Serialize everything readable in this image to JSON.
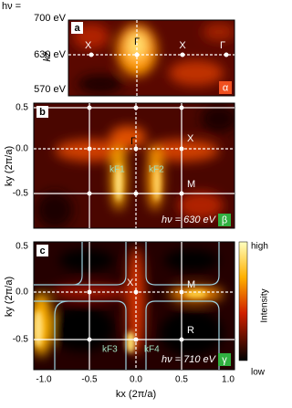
{
  "figure": {
    "hv_label": "hν =",
    "panel_a": {
      "letter": "a",
      "y_axis_label": "kz",
      "energy_labels": [
        "700 eV",
        "630 eV",
        "570 eV"
      ],
      "points": [
        "X",
        "Γ",
        "X",
        "Γ"
      ],
      "tag": "α"
    },
    "panel_b": {
      "letter": "b",
      "y_axis_label": "ky (2π/a)",
      "yticks": [
        "0.5",
        "0.0",
        "-0.5"
      ],
      "points": [
        "Γ",
        "X",
        "M"
      ],
      "kf_labels": [
        "kF1",
        "kF2"
      ],
      "photon_energy": "hν = 630 eV",
      "tag": "β"
    },
    "panel_c": {
      "letter": "c",
      "y_axis_label": "ky (2π/a)",
      "yticks": [
        "0.5",
        "0.0",
        "-0.5"
      ],
      "points": [
        "X",
        "M",
        "R"
      ],
      "kf_labels": [
        "kF3",
        "kF4"
      ],
      "photon_energy": "hν = 710 eV",
      "tag": "γ",
      "xticks": [
        "-1.0",
        "-0.5",
        "0.0",
        "0.5",
        "1.0"
      ],
      "x_axis_label": "kx (2π/a)"
    },
    "colorbar": {
      "high": "high",
      "low": "low",
      "label": "Intensity"
    }
  }
}
